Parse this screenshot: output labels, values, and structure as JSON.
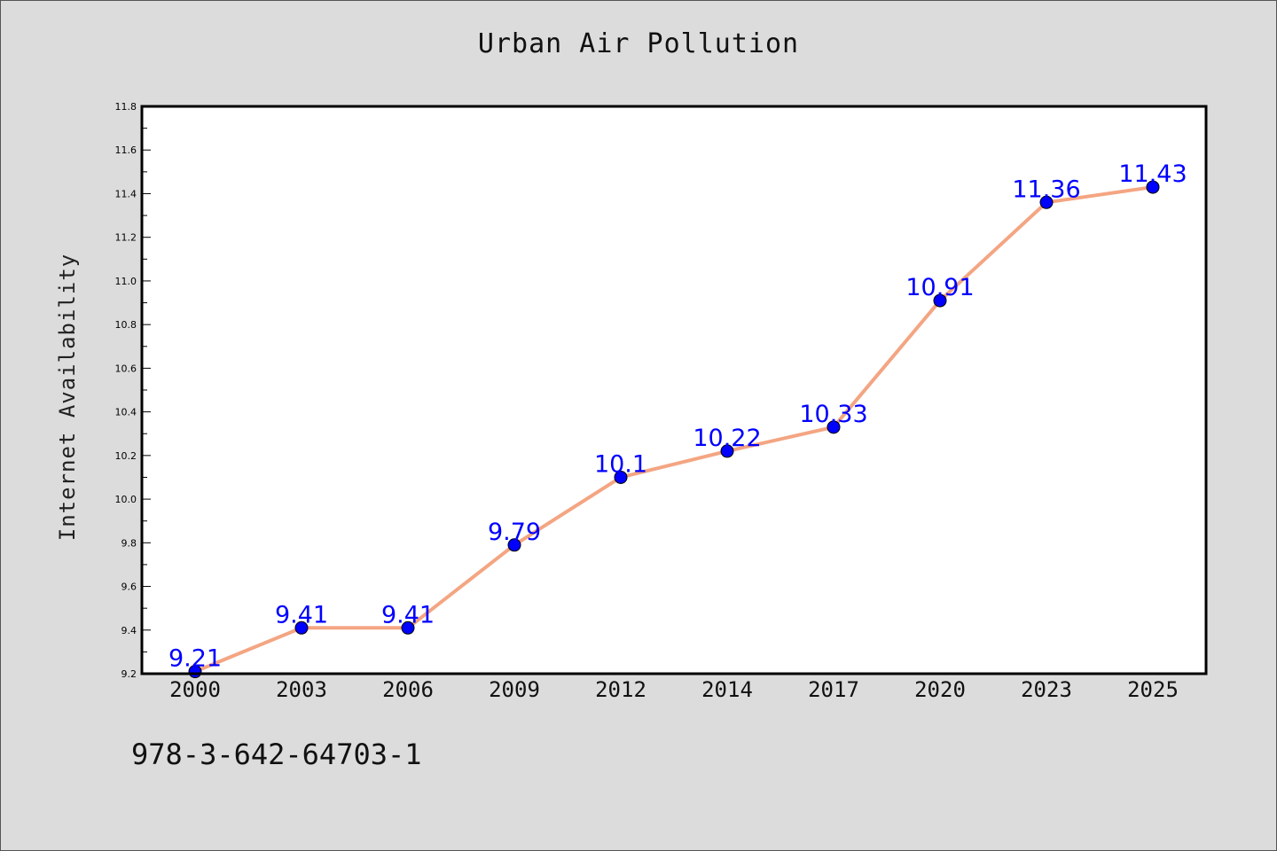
{
  "chart_data": {
    "type": "line",
    "title": "Urban Air Pollution",
    "xlabel": "",
    "ylabel": "Internet Availability",
    "categories": [
      "2000",
      "2003",
      "2006",
      "2009",
      "2012",
      "2014",
      "2017",
      "2020",
      "2023",
      "2025"
    ],
    "series": [
      {
        "values": [
          9.21,
          9.41,
          9.41,
          9.79,
          10.1,
          10.22,
          10.33,
          10.91,
          11.36,
          11.43
        ],
        "labels": [
          "9.21",
          "9.41",
          "9.41",
          "9.79",
          "10.1",
          "10.22",
          "10.33",
          "10.91",
          "11.36",
          "11.43"
        ]
      }
    ],
    "ylim": [
      9.2,
      11.8
    ],
    "yticks": [
      "9.2",
      "9.4",
      "9.6",
      "9.8",
      "10.0",
      "10.2",
      "10.4",
      "10.6",
      "10.8",
      "11.0",
      "11.2",
      "11.4",
      "11.6",
      "11.8"
    ],
    "grid": false,
    "line_color": "#f4a582",
    "marker_color": "#0000ff",
    "label_color": "#0000ff"
  },
  "footer": {
    "code": "978-3-642-64703-1"
  }
}
